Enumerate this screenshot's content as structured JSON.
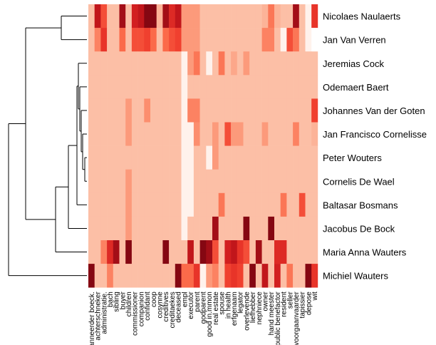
{
  "chart_data": {
    "type": "heatmap",
    "rows": [
      "Nicolaes Naulaerts",
      "Jan Van Verren",
      "Jeremias Cock",
      "Odemaert Baert",
      "Johannes Van der Goten",
      "Jan Francisco Cornelisse",
      "Peter Wouters",
      "Cornelis De Wael",
      "Baltasar Bosmans",
      "Jacobus De Bock",
      "Maria Anna Wauters",
      "Michiel Wauters"
    ],
    "columns": [
      "aanneerder boeck.",
      "achterschneker",
      "administratie.",
      "bach",
      "sibling",
      "buyer",
      "children",
      "commissioner",
      "companion",
      "confidant",
      "coop",
      "cosynne",
      "creditives",
      "creditaekes",
      "deceased",
      "empl",
      "executor",
      "parent",
      "godparent",
      "good in.mmon",
      "real estate",
      "spouse",
      "in health",
      "erfgenaam",
      "legator",
      "overlevende",
      "liefhebber",
      "nephniece",
      "owner",
      "hand meester",
      "public benefactor",
      "resident",
      "seller",
      "voorgaanvaarder",
      "tapissier",
      "depose",
      "wit"
    ],
    "values": [
      [
        0.15,
        0.85,
        0.6,
        0.15,
        0.15,
        0.9,
        0.15,
        0.8,
        0.85,
        0.95,
        0.95,
        0.2,
        0.9,
        0.75,
        0.85,
        0.3,
        0.3,
        0.3,
        0.15,
        0.15,
        0.15,
        0.15,
        0.15,
        0.15,
        0.15,
        0.15,
        0.15,
        0.15,
        0.2,
        0.45,
        0.2,
        0.15,
        0.15,
        0.9,
        0.15,
        0.05,
        0.7
      ],
      [
        0.15,
        0.4,
        0.7,
        0.15,
        0.15,
        0.5,
        0.15,
        0.6,
        0.6,
        0.65,
        0.5,
        0.15,
        0.5,
        0.6,
        0.65,
        0.3,
        0.3,
        0.3,
        0.15,
        0.15,
        0.15,
        0.15,
        0.15,
        0.15,
        0.15,
        0.15,
        0.15,
        0.15,
        0.4,
        0.4,
        0.15,
        0.05,
        0.6,
        0.45,
        0.15,
        0.05,
        0.0
      ],
      [
        0.15,
        0.15,
        0.15,
        0.15,
        0.15,
        0.15,
        0.15,
        0.15,
        0.15,
        0.15,
        0.15,
        0.15,
        0.15,
        0.15,
        0.15,
        0.05,
        0.3,
        0.45,
        0.15,
        0.05,
        0.15,
        0.45,
        0.15,
        0.25,
        0.15,
        0.3,
        0.15,
        0.15,
        0.15,
        0.15,
        0.15,
        0.15,
        0.15,
        0.15,
        0.15,
        0.15,
        0.15
      ],
      [
        0.15,
        0.15,
        0.15,
        0.15,
        0.15,
        0.15,
        0.15,
        0.15,
        0.15,
        0.15,
        0.15,
        0.15,
        0.15,
        0.15,
        0.15,
        0.05,
        0.15,
        0.15,
        0.15,
        0.15,
        0.15,
        0.15,
        0.15,
        0.15,
        0.15,
        0.15,
        0.15,
        0.15,
        0.15,
        0.15,
        0.15,
        0.15,
        0.15,
        0.15,
        0.15,
        0.15,
        0.15
      ],
      [
        0.15,
        0.15,
        0.15,
        0.15,
        0.15,
        0.15,
        0.3,
        0.15,
        0.15,
        0.35,
        0.15,
        0.15,
        0.15,
        0.15,
        0.15,
        0.05,
        0.4,
        0.4,
        0.15,
        0.15,
        0.15,
        0.15,
        0.15,
        0.15,
        0.15,
        0.15,
        0.15,
        0.15,
        0.15,
        0.15,
        0.15,
        0.15,
        0.15,
        0.15,
        0.15,
        0.15,
        0.65
      ],
      [
        0.15,
        0.15,
        0.15,
        0.15,
        0.15,
        0.15,
        0.3,
        0.15,
        0.15,
        0.15,
        0.15,
        0.15,
        0.15,
        0.15,
        0.15,
        0.05,
        0.05,
        0.35,
        0.15,
        0.15,
        0.3,
        0.15,
        0.6,
        0.3,
        0.3,
        0.15,
        0.15,
        0.15,
        0.3,
        0.15,
        0.15,
        0.15,
        0.15,
        0.4,
        0.15,
        0.15,
        0.2
      ],
      [
        0.15,
        0.15,
        0.15,
        0.15,
        0.15,
        0.15,
        0.15,
        0.15,
        0.15,
        0.15,
        0.15,
        0.15,
        0.15,
        0.15,
        0.15,
        0.05,
        0.05,
        0.15,
        0.15,
        0.05,
        0.3,
        0.15,
        0.15,
        0.15,
        0.15,
        0.15,
        0.15,
        0.15,
        0.15,
        0.15,
        0.15,
        0.15,
        0.15,
        0.15,
        0.15,
        0.15,
        0.15
      ],
      [
        0.15,
        0.15,
        0.15,
        0.15,
        0.15,
        0.15,
        0.3,
        0.15,
        0.15,
        0.15,
        0.15,
        0.15,
        0.15,
        0.15,
        0.15,
        0.05,
        0.05,
        0.15,
        0.15,
        0.15,
        0.15,
        0.15,
        0.15,
        0.15,
        0.15,
        0.15,
        0.15,
        0.15,
        0.15,
        0.15,
        0.15,
        0.15,
        0.15,
        0.15,
        0.15,
        0.15,
        0.15
      ],
      [
        0.15,
        0.15,
        0.15,
        0.15,
        0.15,
        0.15,
        0.3,
        0.15,
        0.15,
        0.15,
        0.15,
        0.15,
        0.15,
        0.15,
        0.15,
        0.05,
        0.05,
        0.15,
        0.15,
        0.15,
        0.15,
        0.45,
        0.15,
        0.15,
        0.15,
        0.15,
        0.15,
        0.15,
        0.15,
        0.15,
        0.15,
        0.45,
        0.15,
        0.15,
        0.6,
        0.15,
        0.15
      ],
      [
        0.15,
        0.15,
        0.15,
        0.15,
        0.15,
        0.15,
        0.3,
        0.15,
        0.15,
        0.15,
        0.15,
        0.15,
        0.15,
        0.15,
        0.15,
        0.05,
        0.15,
        0.15,
        0.15,
        0.15,
        0.9,
        0.15,
        0.15,
        0.15,
        0.15,
        0.95,
        0.15,
        0.15,
        0.15,
        0.95,
        0.15,
        0.15,
        0.15,
        0.15,
        0.15,
        0.15,
        0.15
      ],
      [
        0.15,
        0.15,
        0.4,
        0.75,
        0.9,
        0.15,
        0.95,
        0.15,
        0.15,
        0.15,
        0.15,
        0.15,
        0.95,
        0.15,
        0.15,
        0.15,
        0.85,
        0.15,
        0.95,
        0.9,
        0.6,
        0.15,
        0.8,
        0.85,
        0.7,
        0.6,
        0.15,
        0.9,
        0.15,
        0.15,
        0.75,
        0.75,
        0.15,
        0.15,
        0.15,
        0.15,
        0.15
      ],
      [
        0.95,
        0.15,
        0.15,
        0.4,
        0.15,
        0.15,
        0.15,
        0.15,
        0.15,
        0.15,
        0.15,
        0.15,
        0.15,
        0.15,
        0.95,
        0.5,
        0.5,
        0.7,
        0.05,
        0.3,
        0.4,
        0.15,
        0.65,
        0.7,
        0.65,
        0.15,
        0.95,
        0.15,
        0.85,
        0.15,
        0.8,
        0.15,
        0.45,
        0.15,
        0.15,
        0.95,
        0.7
      ]
    ],
    "color_scale": [
      "#fee0d2",
      "#fcbba1",
      "#fc9272",
      "#fb6a4a",
      "#ef3b2c",
      "#cb181d",
      "#67000d"
    ],
    "row_dendrogram": true,
    "legend": "none"
  }
}
